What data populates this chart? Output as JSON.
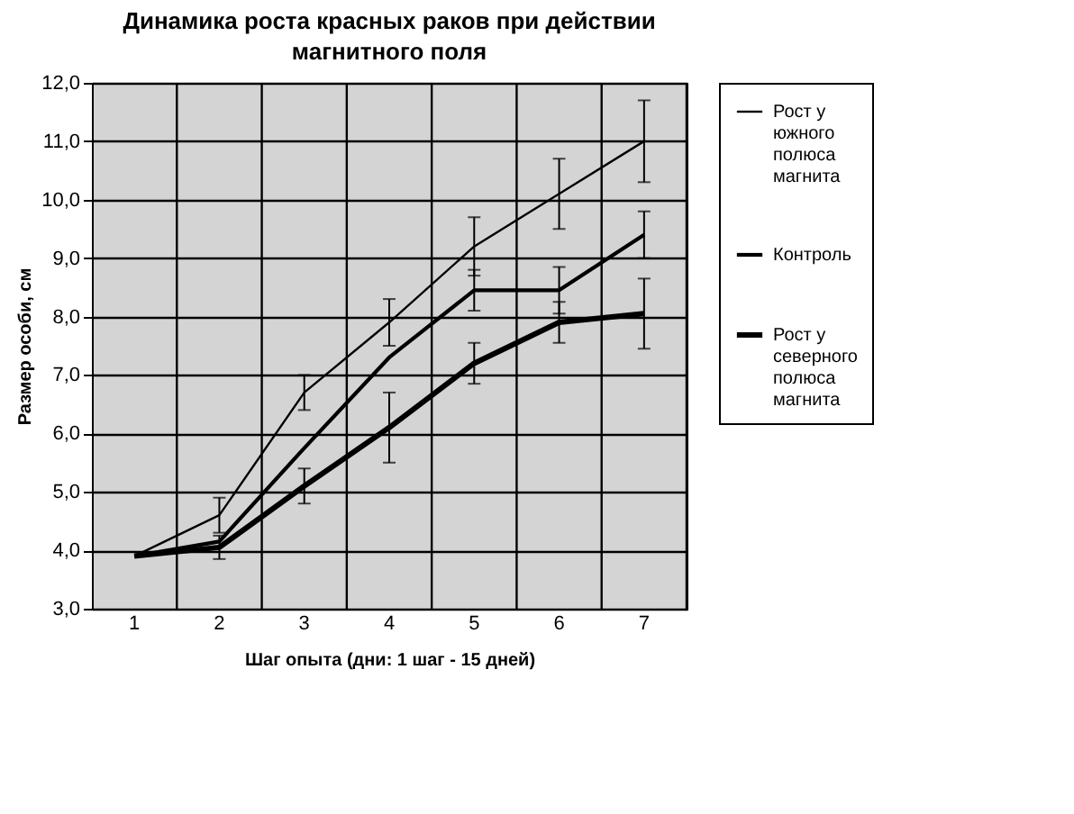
{
  "chart_data": {
    "type": "line",
    "title": "Динамика роста красных раков при действии магнитного поля",
    "xlabel": "Шаг опыта (дни: 1 шаг - 15 дней)",
    "ylabel": "Размер особи, см",
    "categories": [
      "1",
      "2",
      "3",
      "4",
      "5",
      "6",
      "7"
    ],
    "series": [
      {
        "name": "Рост у южного полюса магнита",
        "color": "#000000",
        "values": [
          3.9,
          4.6,
          6.7,
          7.9,
          9.2,
          10.1,
          11.0
        ],
        "errors": [
          null,
          0.3,
          0.3,
          0.4,
          0.5,
          0.6,
          0.7
        ]
      },
      {
        "name": "Контроль",
        "color": "#000000",
        "values": [
          3.9,
          4.15,
          5.75,
          7.3,
          8.45,
          8.45,
          9.4
        ],
        "errors": [
          null,
          null,
          null,
          null,
          0.35,
          0.4,
          0.4
        ]
      },
      {
        "name": "Рост у северного полюса магнита",
        "color": "#000000",
        "values": [
          3.9,
          4.05,
          5.1,
          6.1,
          7.2,
          7.9,
          8.05
        ],
        "errors": [
          null,
          0.2,
          0.3,
          0.6,
          0.35,
          0.35,
          0.6
        ]
      }
    ],
    "ylim": [
      3,
      12
    ],
    "yticks": [
      {
        "value": 3,
        "label": "3,0"
      },
      {
        "value": 4,
        "label": "4,0"
      },
      {
        "value": 5,
        "label": "5,0"
      },
      {
        "value": 6,
        "label": "6,0"
      },
      {
        "value": 7,
        "label": "7,0"
      },
      {
        "value": 8,
        "label": "8,0"
      },
      {
        "value": 9,
        "label": "9,0"
      },
      {
        "value": 10,
        "label": "10,0"
      },
      {
        "value": 11,
        "label": "11,0"
      },
      {
        "value": 12,
        "label": "12,0"
      }
    ],
    "grid": true,
    "legend": "right",
    "marker": "none"
  }
}
